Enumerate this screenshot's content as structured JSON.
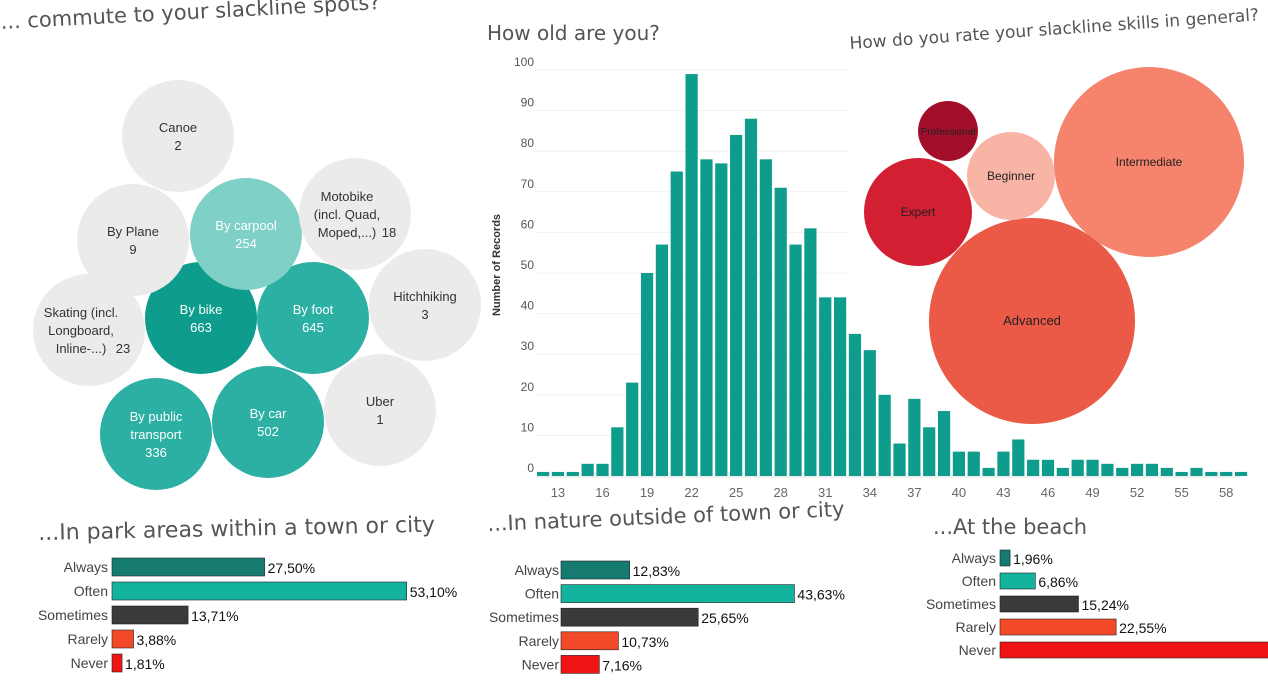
{
  "titles": {
    "commute": "... commute to your slackline spots?",
    "age": "How old are you?",
    "skill": "How do you rate your slackline skills in general?",
    "park": "...In park areas within a town or city",
    "nature": "...In nature outside of town or city",
    "beach": "...At the beach"
  },
  "colors": {
    "teal_dark": "#0e9c8c",
    "teal_mid": "#2bb0a3",
    "teal_light": "#7fd0c7",
    "grey_bubble": "#ebebeb",
    "always_bar": "#157a70",
    "often_bar": "#14b39d",
    "sometimes_bar": "#3a3a3c",
    "rarely_bar": "#f24a28",
    "never_bar": "#ee1414"
  },
  "chart_data": [
    {
      "type": "bubble",
      "title": "... commute to your slackline spots?",
      "categories": [
        "By bike",
        "By foot",
        "By car",
        "By public transport",
        "By carpool",
        "Skating (incl. Longboard, Inline-...)",
        "Motobike (incl. Quad, Moped,...)",
        "By Plane",
        "Hitchhiking",
        "Canoe",
        "Uber"
      ],
      "values": [
        663,
        645,
        502,
        336,
        254,
        23,
        18,
        9,
        3,
        2,
        1
      ],
      "bubbles": [
        {
          "lines": [
            "By bike",
            "663"
          ],
          "color": "teal_dark"
        },
        {
          "lines": [
            "By foot",
            "645"
          ],
          "color": "teal_mid"
        },
        {
          "lines": [
            "By car",
            "502"
          ],
          "color": "teal_mid"
        },
        {
          "lines": [
            "By public",
            "transport",
            "336"
          ],
          "color": "teal_mid"
        },
        {
          "lines": [
            "By carpool",
            "254"
          ],
          "color": "teal_light"
        },
        {
          "lines": [
            "Skating (incl.",
            "Longboard,",
            "Inline-...)"
          ],
          "extra": "23",
          "color": "grey_bubble"
        },
        {
          "lines": [
            "Motobike",
            "(incl. Quad,",
            "Moped,...)"
          ],
          "extra": "18",
          "color": "grey_bubble"
        },
        {
          "lines": [
            "By Plane",
            "9"
          ],
          "color": "grey_bubble"
        },
        {
          "lines": [
            "Hitchhiking",
            "3"
          ],
          "color": "grey_bubble"
        },
        {
          "lines": [
            "Canoe",
            "2"
          ],
          "color": "grey_bubble"
        },
        {
          "lines": [
            "Uber",
            "1"
          ],
          "color": "grey_bubble"
        }
      ]
    },
    {
      "type": "bar",
      "title": "How old are you?",
      "ylabel": "Number of Records",
      "xlabel": "",
      "x": [
        12,
        13,
        14,
        15,
        16,
        17,
        18,
        19,
        20,
        21,
        22,
        23,
        24,
        25,
        26,
        27,
        28,
        29,
        30,
        31,
        32,
        33,
        34,
        35,
        36,
        37,
        38,
        39,
        40,
        41,
        42,
        43,
        44,
        45,
        46,
        47,
        48,
        49,
        50,
        51,
        52,
        53,
        54,
        55,
        56,
        57,
        58,
        59
      ],
      "values": [
        1,
        1,
        1,
        3,
        3,
        12,
        23,
        50,
        57,
        75,
        99,
        78,
        77,
        84,
        88,
        78,
        71,
        57,
        61,
        44,
        44,
        35,
        31,
        20,
        8,
        19,
        12,
        16,
        6,
        6,
        2,
        6,
        9,
        4,
        4,
        2,
        4,
        4,
        3,
        2,
        3,
        3,
        2,
        1,
        2,
        1,
        1,
        1
      ],
      "xticks": [
        "13",
        "16",
        "19",
        "22",
        "25",
        "28",
        "31",
        "34",
        "37",
        "40",
        "43",
        "46",
        "49",
        "52",
        "55",
        "58"
      ],
      "yticks": [
        0,
        10,
        20,
        30,
        40,
        50,
        60,
        70,
        80,
        90,
        100
      ],
      "ylim": [
        0,
        100
      ],
      "grid": true,
      "color": "#0e9c8c"
    },
    {
      "type": "bubble",
      "title": "How do you rate your slackline skills in general?",
      "categories": [
        "Advanced",
        "Intermediate",
        "Expert",
        "Beginner",
        "Professional"
      ],
      "bubbles": [
        {
          "label": "Advanced",
          "color": "#eb5a47"
        },
        {
          "label": "Intermediate",
          "color": "#f6836c"
        },
        {
          "label": "Expert",
          "color": "#d21f32"
        },
        {
          "label": "Beginner",
          "color": "#f8b5a6"
        },
        {
          "label": "Professional",
          "color": "#a30e2b"
        }
      ]
    },
    {
      "type": "bar",
      "orientation": "horizontal",
      "title": "...In park areas within a town or city",
      "categories": [
        "Always",
        "Often",
        "Sometimes",
        "Rarely",
        "Never"
      ],
      "values": [
        27.5,
        53.1,
        13.71,
        3.88,
        1.81
      ],
      "labels": [
        "27,50%",
        "53,10%",
        "13,71%",
        "3,88%",
        "1,81%"
      ]
    },
    {
      "type": "bar",
      "orientation": "horizontal",
      "title": "...In nature outside of town or city",
      "categories": [
        "Always",
        "Often",
        "Sometimes",
        "Rarely",
        "Never"
      ],
      "values": [
        12.83,
        43.63,
        25.65,
        10.73,
        7.16
      ],
      "labels": [
        "12,83%",
        "43,63%",
        "25,65%",
        "10,73%",
        "7,16%"
      ]
    },
    {
      "type": "bar",
      "orientation": "horizontal",
      "title": "...At the beach",
      "categories": [
        "Always",
        "Often",
        "Sometimes",
        "Rarely",
        "Never"
      ],
      "values": [
        1.96,
        6.86,
        15.24,
        22.55,
        53.39
      ],
      "labels": [
        "1,96%",
        "6,86%",
        "15,24%",
        "22,55%",
        ""
      ]
    }
  ]
}
